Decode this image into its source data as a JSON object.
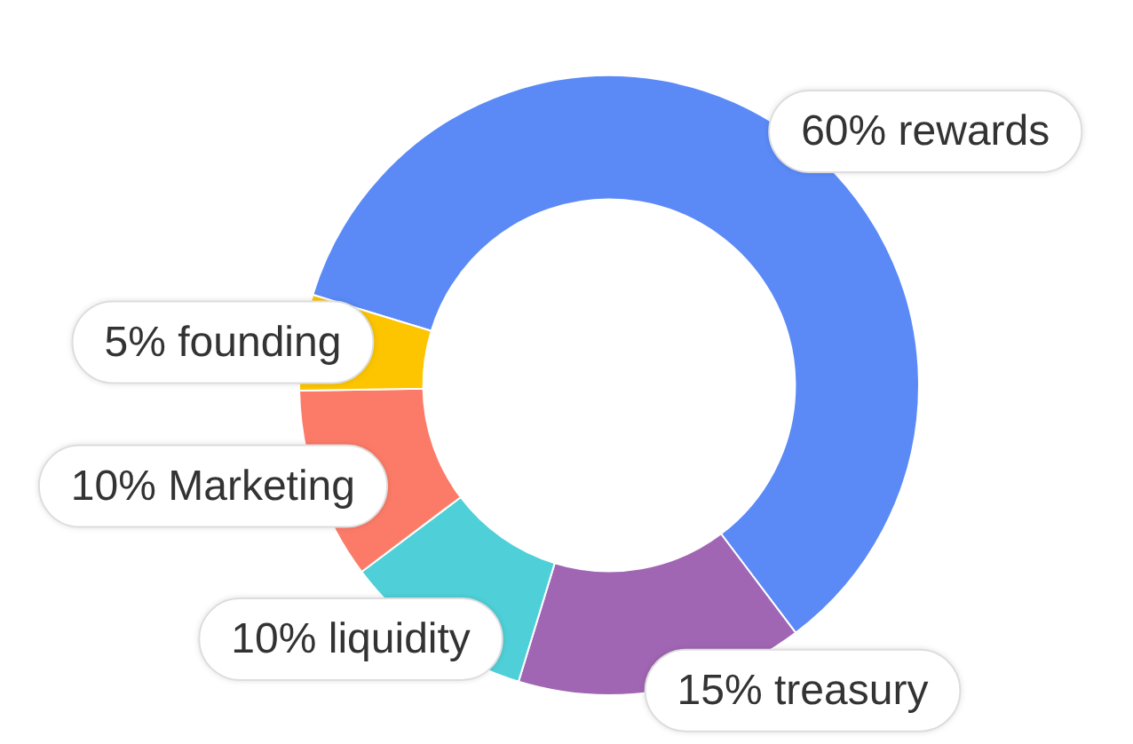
{
  "chart_data": {
    "type": "donut",
    "categories": [
      "rewards",
      "treasury",
      "liquidity",
      "Marketing",
      "founding"
    ],
    "values": [
      60,
      15,
      10,
      10,
      5
    ],
    "colors": [
      "#5b8af7",
      "#a066b3",
      "#4fd0d8",
      "#fc7b68",
      "#fdc500"
    ],
    "value_labels": [
      "60%",
      "15%",
      "10%",
      "10%",
      "5%"
    ]
  }
}
